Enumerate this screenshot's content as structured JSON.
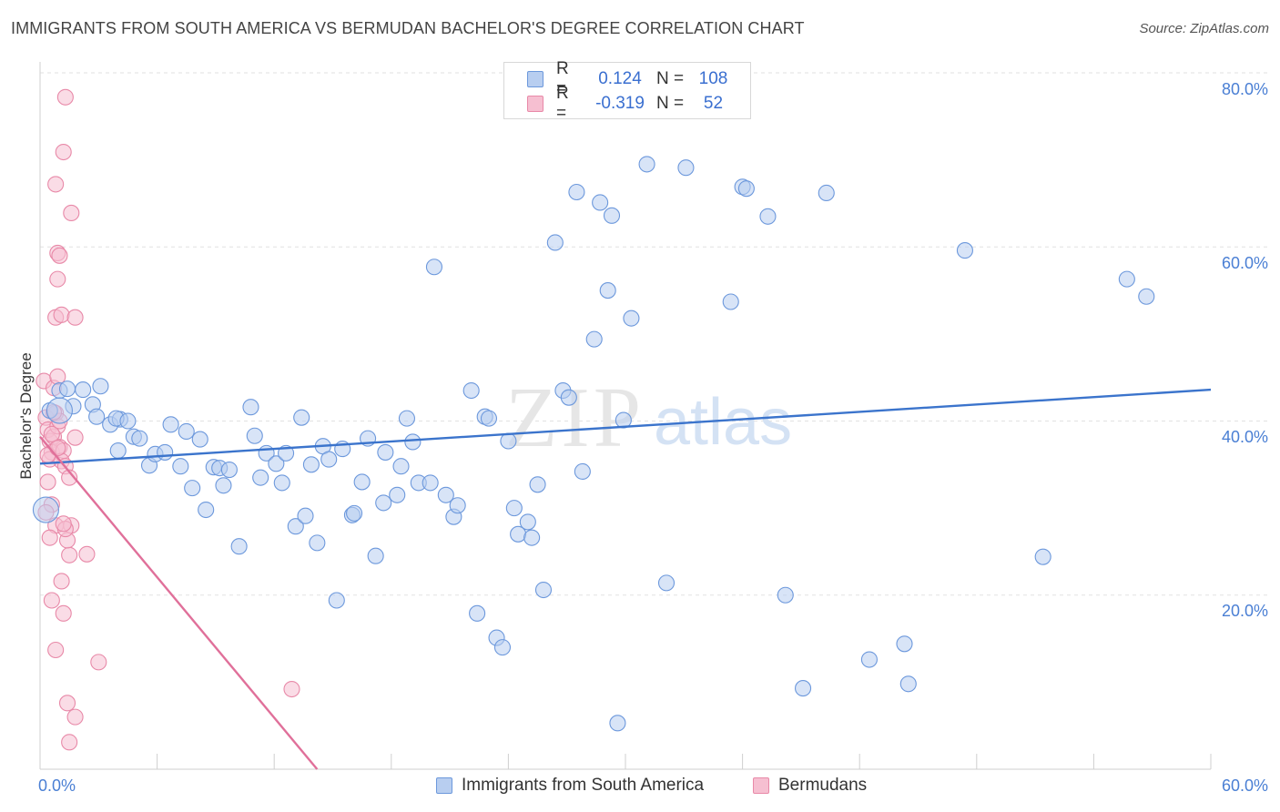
{
  "chart_data": {
    "type": "scatter",
    "title": "IMMIGRANTS FROM SOUTH AMERICA VS BERMUDAN BACHELOR'S DEGREE CORRELATION CHART",
    "source": "Source: ZipAtlas.com",
    "xlabel": "",
    "ylabel": "Bachelor's Degree",
    "xlim": [
      0,
      60
    ],
    "ylim": [
      0,
      80
    ],
    "x_tick_labels": [
      "0.0%",
      "60.0%"
    ],
    "y_tick_labels": [
      "20.0%",
      "40.0%",
      "60.0%",
      "80.0%"
    ],
    "y_ticks": [
      20,
      40,
      60,
      80
    ],
    "watermark": {
      "zip": "ZIP",
      "atlas": "atlas"
    },
    "colors": {
      "blue_fill": "#b8cef0",
      "blue_stroke": "#6c98dc",
      "blue_line": "#3b74cc",
      "pink_fill": "#f6bfd1",
      "pink_stroke": "#e889a8",
      "pink_line": "#e0709a",
      "grid": "#e2e2e2",
      "tick_text": "#4a7fd4"
    },
    "stats": [
      {
        "r_label": "R =",
        "r_value": "0.124",
        "n_label": "N =",
        "n_value": "108"
      },
      {
        "r_label": "R =",
        "r_value": "-0.319",
        "n_label": "N =",
        "n_value": "52"
      }
    ],
    "series": [
      {
        "name": "Immigrants from South America",
        "color": "blue",
        "trend": {
          "x0": 0,
          "y0": 35.1,
          "x1": 60,
          "y1": 43.6
        },
        "points": [
          [
            0.5,
            41.2
          ],
          [
            1.0,
            43.5
          ],
          [
            1.4,
            43.7
          ],
          [
            1.7,
            41.7
          ],
          [
            2.2,
            43.6
          ],
          [
            3.1,
            44.0
          ],
          [
            2.7,
            41.9
          ],
          [
            2.9,
            40.5
          ],
          [
            3.6,
            39.6
          ],
          [
            4.1,
            40.2
          ],
          [
            3.9,
            40.3
          ],
          [
            4.5,
            40.0
          ],
          [
            4.0,
            36.6
          ],
          [
            4.8,
            38.2
          ],
          [
            5.1,
            38.0
          ],
          [
            5.6,
            34.9
          ],
          [
            5.9,
            36.2
          ],
          [
            6.4,
            36.4
          ],
          [
            6.7,
            39.6
          ],
          [
            7.2,
            34.8
          ],
          [
            7.5,
            38.8
          ],
          [
            7.8,
            32.3
          ],
          [
            8.2,
            37.9
          ],
          [
            8.5,
            29.8
          ],
          [
            8.9,
            34.7
          ],
          [
            9.2,
            34.6
          ],
          [
            9.4,
            32.6
          ],
          [
            9.7,
            34.4
          ],
          [
            10.2,
            25.6
          ],
          [
            10.8,
            41.6
          ],
          [
            11.0,
            38.3
          ],
          [
            11.3,
            33.5
          ],
          [
            11.6,
            36.3
          ],
          [
            12.1,
            35.1
          ],
          [
            12.4,
            32.9
          ],
          [
            12.6,
            36.3
          ],
          [
            13.1,
            27.9
          ],
          [
            13.4,
            40.4
          ],
          [
            13.6,
            29.1
          ],
          [
            13.9,
            35.0
          ],
          [
            14.2,
            26.0
          ],
          [
            14.5,
            37.1
          ],
          [
            14.8,
            35.6
          ],
          [
            15.2,
            19.4
          ],
          [
            15.5,
            36.8
          ],
          [
            16.0,
            29.2
          ],
          [
            16.1,
            29.4
          ],
          [
            16.5,
            33.0
          ],
          [
            16.8,
            38.0
          ],
          [
            17.2,
            24.5
          ],
          [
            17.6,
            30.6
          ],
          [
            17.7,
            36.4
          ],
          [
            18.3,
            31.5
          ],
          [
            18.5,
            34.8
          ],
          [
            18.8,
            40.3
          ],
          [
            19.1,
            37.6
          ],
          [
            19.4,
            32.9
          ],
          [
            20.0,
            32.9
          ],
          [
            20.2,
            57.7
          ],
          [
            20.8,
            31.5
          ],
          [
            21.2,
            29.0
          ],
          [
            21.4,
            30.3
          ],
          [
            22.1,
            43.5
          ],
          [
            22.4,
            17.9
          ],
          [
            22.8,
            40.5
          ],
          [
            23.0,
            40.3
          ],
          [
            23.4,
            15.1
          ],
          [
            23.7,
            14.0
          ],
          [
            24.0,
            37.7
          ],
          [
            24.3,
            30.0
          ],
          [
            24.5,
            27.0
          ],
          [
            25.0,
            28.4
          ],
          [
            25.2,
            26.6
          ],
          [
            25.5,
            32.7
          ],
          [
            25.8,
            20.6
          ],
          [
            26.4,
            60.5
          ],
          [
            26.8,
            43.5
          ],
          [
            27.1,
            42.7
          ],
          [
            27.5,
            66.3
          ],
          [
            27.8,
            34.2
          ],
          [
            28.4,
            49.4
          ],
          [
            28.7,
            65.1
          ],
          [
            29.1,
            55.0
          ],
          [
            29.3,
            63.6
          ],
          [
            29.6,
            5.3
          ],
          [
            29.9,
            40.1
          ],
          [
            30.3,
            51.8
          ],
          [
            31.1,
            69.5
          ],
          [
            32.1,
            21.4
          ],
          [
            33.1,
            69.1
          ],
          [
            35.4,
            53.7
          ],
          [
            36.0,
            66.9
          ],
          [
            36.2,
            66.7
          ],
          [
            37.3,
            63.5
          ],
          [
            38.2,
            20.0
          ],
          [
            39.1,
            9.3
          ],
          [
            40.3,
            66.2
          ],
          [
            42.5,
            12.6
          ],
          [
            44.3,
            14.4
          ],
          [
            44.5,
            9.8
          ],
          [
            47.4,
            59.6
          ],
          [
            51.4,
            24.4
          ],
          [
            55.7,
            56.3
          ],
          [
            56.7,
            54.3
          ]
        ],
        "large_points": [
          [
            1.0,
            41.2
          ],
          [
            0.3,
            29.8
          ]
        ]
      },
      {
        "name": "Bermudans",
        "color": "pink",
        "trend": {
          "x0": 0,
          "y0": 38.2,
          "x1": 14.2,
          "y1": 0
        },
        "points": [
          [
            0.2,
            44.6
          ],
          [
            0.3,
            40.4
          ],
          [
            0.4,
            39.0
          ],
          [
            0.5,
            37.7
          ],
          [
            0.6,
            36.4
          ],
          [
            0.5,
            35.6
          ],
          [
            0.7,
            38.2
          ],
          [
            0.8,
            40.9
          ],
          [
            0.9,
            39.4
          ],
          [
            1.0,
            37.0
          ],
          [
            1.2,
            36.6
          ],
          [
            1.1,
            35.4
          ],
          [
            1.3,
            34.8
          ],
          [
            0.4,
            33.0
          ],
          [
            0.6,
            30.4
          ],
          [
            0.8,
            28.0
          ],
          [
            0.5,
            26.6
          ],
          [
            0.7,
            43.8
          ],
          [
            0.9,
            45.1
          ],
          [
            0.8,
            51.9
          ],
          [
            1.1,
            52.2
          ],
          [
            1.8,
            51.9
          ],
          [
            0.9,
            56.3
          ],
          [
            0.9,
            59.3
          ],
          [
            1.0,
            59.0
          ],
          [
            0.8,
            67.2
          ],
          [
            1.2,
            70.9
          ],
          [
            1.3,
            77.2
          ],
          [
            1.6,
            63.9
          ],
          [
            0.6,
            19.4
          ],
          [
            0.8,
            13.7
          ],
          [
            1.1,
            21.6
          ],
          [
            1.2,
            17.9
          ],
          [
            1.5,
            24.6
          ],
          [
            1.4,
            26.3
          ],
          [
            1.6,
            28.0
          ],
          [
            1.3,
            27.6
          ],
          [
            1.8,
            38.1
          ],
          [
            2.4,
            24.7
          ],
          [
            3.0,
            12.3
          ],
          [
            1.4,
            7.6
          ],
          [
            1.8,
            6.0
          ],
          [
            1.5,
            3.1
          ],
          [
            12.9,
            9.2
          ],
          [
            0.4,
            36.1
          ],
          [
            0.6,
            38.5
          ],
          [
            1.0,
            40.0
          ],
          [
            1.2,
            28.2
          ],
          [
            0.3,
            29.5
          ],
          [
            0.7,
            41.0
          ],
          [
            1.5,
            33.5
          ],
          [
            0.9,
            36.9
          ]
        ]
      }
    ]
  },
  "legend_bottom": [
    {
      "label": "Immigrants from South America",
      "color": "blue"
    },
    {
      "label": "Bermudans",
      "color": "pink"
    }
  ]
}
